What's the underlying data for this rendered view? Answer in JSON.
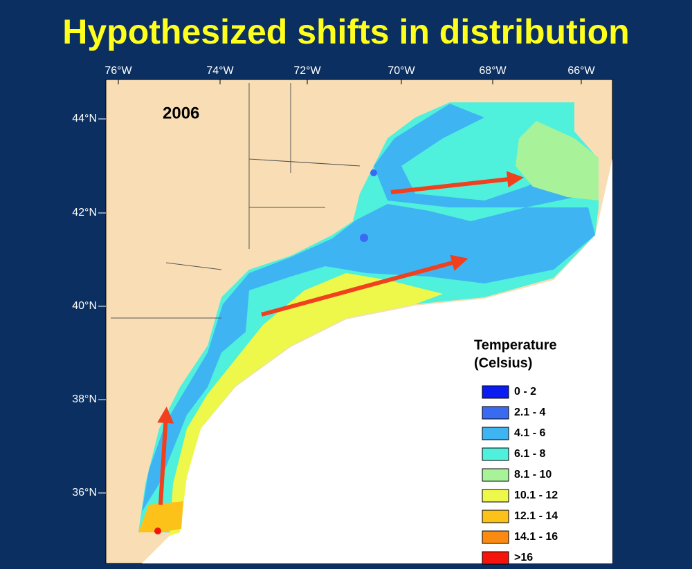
{
  "title": "Hypothesized shifts in distribution",
  "map": {
    "year": "2006",
    "lon_labels": [
      "76°W",
      "74°W",
      "72°W",
      "70°W",
      "68°W",
      "66°W"
    ],
    "lat_labels": [
      "44°N",
      "42°N",
      "40°N",
      "38°N",
      "36°N"
    ],
    "legend": {
      "title": [
        "Temperature",
        "(Celsius)"
      ],
      "items": [
        {
          "label": "0 - 2",
          "color": "#0a1cf0"
        },
        {
          "label": "2.1 - 4",
          "color": "#3a6af0"
        },
        {
          "label": "4.1 - 6",
          "color": "#3fb4f2"
        },
        {
          "label": "6.1 - 8",
          "color": "#4ff0dc"
        },
        {
          "label": "8.1 - 10",
          "color": "#a8f29a"
        },
        {
          "label": "10.1 - 12",
          "color": "#eef84a"
        },
        {
          "label": "12.1 - 14",
          "color": "#fcc21a"
        },
        {
          "label": "14.1 - 16",
          "color": "#fb8a12"
        },
        {
          "label": ">16",
          "color": "#f4140c"
        }
      ]
    }
  }
}
